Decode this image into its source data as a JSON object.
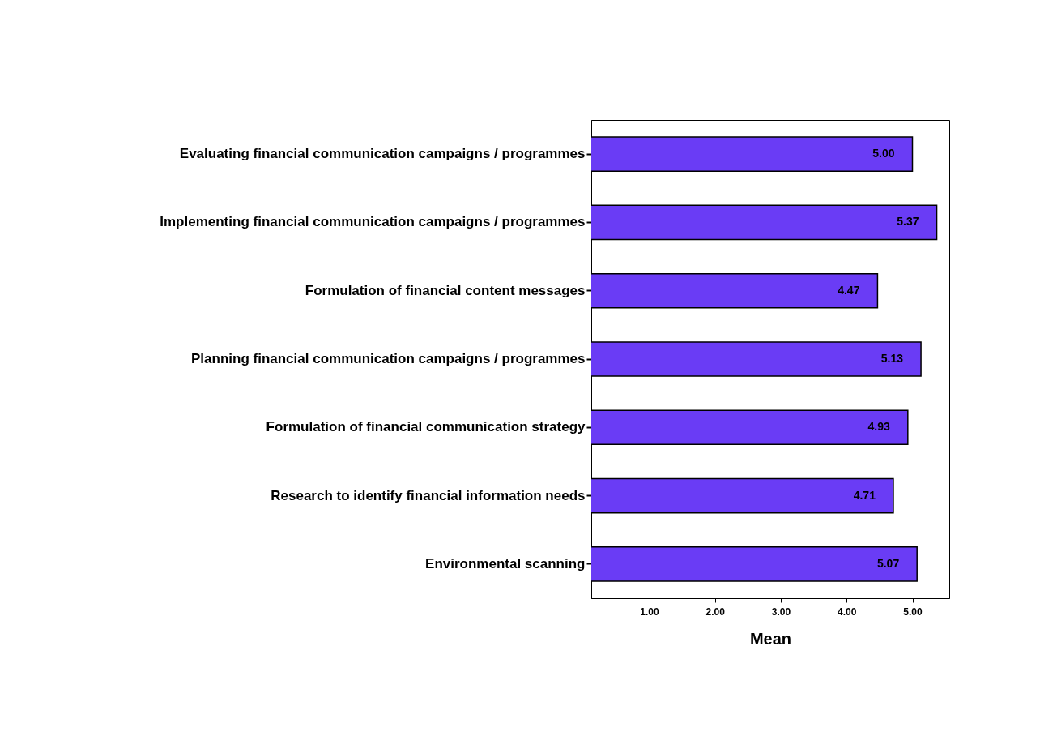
{
  "chart_data": {
    "type": "bar",
    "orientation": "horizontal",
    "xlabel": "Mean",
    "categories": [
      "Evaluating financial communication campaigns / programmes",
      "Implementing financial communication campaigns / programmes",
      "Formulation of financial content messages",
      "Planning financial communication campaigns / programmes",
      "Formulation of financial communication strategy",
      "Research to identify financial information needs",
      "Environmental scanning"
    ],
    "values": [
      5.0,
      5.37,
      4.47,
      5.13,
      4.93,
      4.71,
      5.07
    ],
    "value_labels": [
      "5.00",
      "5.37",
      "4.47",
      "5.13",
      "4.93",
      "4.71",
      "5.07"
    ],
    "color": "#6a3cf5",
    "xlim": [
      0.12,
      5.56
    ],
    "xticks": [
      {
        "value": 1,
        "label": "1.00"
      },
      {
        "value": 2,
        "label": "2.00"
      },
      {
        "value": 3,
        "label": "3.00"
      },
      {
        "value": 4,
        "label": "4.00"
      },
      {
        "value": 5,
        "label": "5.00"
      }
    ],
    "grid": false
  }
}
